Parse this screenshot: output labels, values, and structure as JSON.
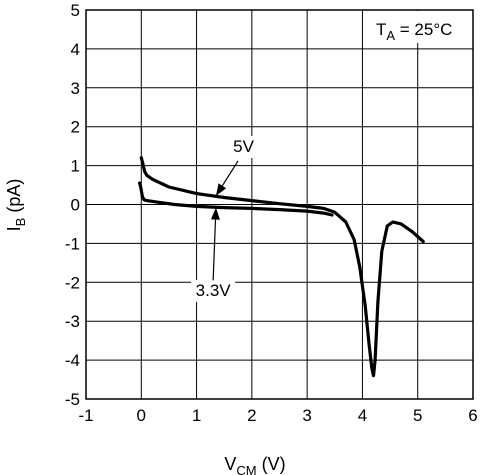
{
  "chart_data": {
    "type": "line",
    "title": "",
    "xlabel": {
      "main": "V",
      "sub": "CM",
      "unit": " (V)"
    },
    "ylabel": {
      "main": "I",
      "sub": "B",
      "unit": " (pA)"
    },
    "xlim": [
      -1,
      6
    ],
    "ylim": [
      -5,
      5
    ],
    "xticks": [
      -1,
      0,
      1,
      2,
      3,
      4,
      5,
      6
    ],
    "yticks": [
      -5,
      -4,
      -3,
      -2,
      -1,
      0,
      1,
      2,
      3,
      4,
      5
    ],
    "grid": true,
    "condition": {
      "main": "T",
      "sub": "A",
      "rest": " = 25°C"
    },
    "series": [
      {
        "name": "5V",
        "x": [
          0.0,
          0.03,
          0.06,
          0.1,
          0.2,
          0.5,
          1.0,
          1.5,
          2.0,
          2.5,
          3.0,
          3.3,
          3.5,
          3.7,
          3.85,
          3.95,
          4.05,
          4.12,
          4.17,
          4.2,
          4.23,
          4.28,
          4.35,
          4.45,
          4.55,
          4.7,
          4.9,
          5.1
        ],
        "y": [
          1.2,
          1.05,
          0.85,
          0.75,
          0.65,
          0.45,
          0.28,
          0.18,
          0.1,
          0.02,
          -0.05,
          -0.1,
          -0.2,
          -0.45,
          -0.9,
          -1.6,
          -2.6,
          -3.6,
          -4.2,
          -4.4,
          -4.0,
          -2.5,
          -1.2,
          -0.55,
          -0.45,
          -0.5,
          -0.7,
          -0.95
        ]
      },
      {
        "name": "3.3V",
        "x": [
          -0.03,
          -0.01,
          0.02,
          0.05,
          0.1,
          0.3,
          0.6,
          1.0,
          1.5,
          2.0,
          2.5,
          3.0,
          3.3,
          3.45
        ],
        "y": [
          0.55,
          0.45,
          0.2,
          0.12,
          0.1,
          0.06,
          0.0,
          -0.05,
          -0.08,
          -0.1,
          -0.13,
          -0.17,
          -0.22,
          -0.27
        ]
      }
    ],
    "annotations": [
      {
        "text": "5V",
        "label_at": [
          1.85,
          1.35
        ],
        "arrow_from": [
          1.75,
          1.12
        ],
        "arrow_to": [
          1.35,
          0.22
        ]
      },
      {
        "text": "3.3V",
        "label_at": [
          1.3,
          -2.35
        ],
        "arrow_from": [
          1.3,
          -1.95
        ],
        "arrow_to": [
          1.35,
          -0.08
        ]
      }
    ]
  }
}
